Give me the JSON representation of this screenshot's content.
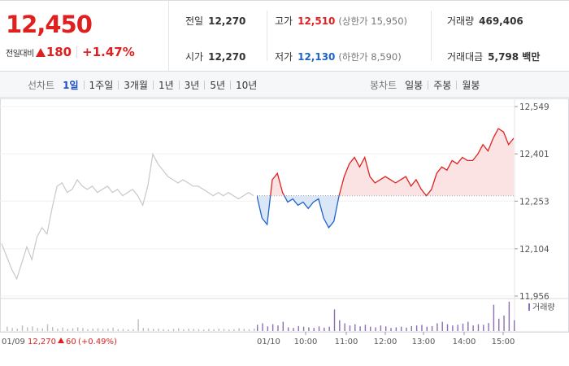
{
  "quote": {
    "price": "12,450",
    "change_label": "전일대비",
    "change_amount": "180",
    "change_pct": "+1.47%"
  },
  "stats": {
    "prev_close_label": "전일",
    "prev_close": "12,270",
    "open_label": "시가",
    "open": "12,270",
    "high_label": "고가",
    "high": "12,510",
    "upper_limit": "(상한가 15,950)",
    "low_label": "저가",
    "low": "12,130",
    "lower_limit": "(하한가 8,590)",
    "volume_label": "거래량",
    "volume": "469,406",
    "value_label": "거래대금",
    "value": "5,798 백만"
  },
  "tabs": {
    "line_label": "선차트",
    "line_periods": [
      "1일",
      "1주일",
      "3개월",
      "1년",
      "3년",
      "5년",
      "10년"
    ],
    "active_period": "1일",
    "candle_label": "봉차트",
    "candle_periods": [
      "일봉",
      "주봉",
      "월봉"
    ]
  },
  "colors": {
    "up": "#e01f1f",
    "down": "#1e64c8",
    "prev_day": "#c8c8c8",
    "volume": "#8a6fb5"
  },
  "chart_data": {
    "type": "line",
    "ylim": [
      11956,
      12549
    ],
    "y_ticks": [
      "12,549",
      "12,401",
      "12,253",
      "12,104",
      "11,956"
    ],
    "baseline": 12270,
    "volume_legend": "거래량",
    "prev_day_label": "01/09",
    "prev_day_close": "12,270",
    "prev_day_change": "60",
    "prev_day_change_pct": "(+0.49%)",
    "today_label": "01/10",
    "x_ticks": [
      "10:00",
      "11:00",
      "12:00",
      "13:00",
      "14:00",
      "15:00"
    ],
    "series": [
      {
        "x": [
          0,
          0.02,
          0.04,
          0.06,
          0.08,
          0.1,
          0.12,
          0.14,
          0.16,
          0.18,
          0.2,
          0.22,
          0.24,
          0.26,
          0.28,
          0.3,
          0.32,
          0.34,
          0.36,
          0.38,
          0.4,
          0.42,
          0.44,
          0.46,
          0.48,
          0.5,
          0.52,
          0.54,
          0.56,
          0.58,
          0.6,
          0.62,
          0.64,
          0.66,
          0.68,
          0.7,
          0.72,
          0.74,
          0.76,
          0.78,
          0.8,
          0.82,
          0.84,
          0.86,
          0.88,
          0.9,
          0.92,
          0.94,
          0.96,
          0.98,
          1.0
        ],
        "values": [
          12120,
          12080,
          12040,
          12010,
          12060,
          12110,
          12070,
          12140,
          12170,
          12150,
          12230,
          12300,
          12310,
          12280,
          12290,
          12320,
          12300,
          12290,
          12300,
          12280,
          12290,
          12300,
          12280,
          12290,
          12270,
          12280,
          12290,
          12270,
          12240,
          12300,
          12400,
          12370,
          12350,
          12330,
          12320,
          12310,
          12320,
          12310,
          12300,
          12300,
          12290,
          12280,
          12270,
          12280,
          12270,
          12280,
          12270,
          12260,
          12270,
          12280,
          12270
        ]
      },
      {
        "x": [
          0,
          0.02,
          0.04,
          0.06,
          0.08,
          0.1,
          0.12,
          0.14,
          0.16,
          0.18,
          0.2,
          0.22,
          0.24,
          0.26,
          0.28,
          0.3,
          0.32,
          0.34,
          0.36,
          0.38,
          0.4,
          0.42,
          0.44,
          0.46,
          0.48,
          0.5,
          0.52,
          0.54,
          0.56,
          0.58,
          0.6,
          0.62,
          0.64,
          0.66,
          0.68,
          0.7,
          0.72,
          0.74,
          0.76,
          0.78,
          0.8,
          0.82,
          0.84,
          0.86,
          0.88,
          0.9,
          0.92,
          0.94,
          0.96,
          0.98,
          1.0
        ],
        "values": [
          12270,
          12200,
          12180,
          12320,
          12340,
          12280,
          12250,
          12260,
          12240,
          12250,
          12230,
          12250,
          12260,
          12200,
          12170,
          12190,
          12270,
          12330,
          12370,
          12390,
          12360,
          12390,
          12330,
          12310,
          12320,
          12330,
          12320,
          12310,
          12320,
          12330,
          12300,
          12320,
          12290,
          12270,
          12290,
          12340,
          12360,
          12350,
          12380,
          12370,
          12390,
          12380,
          12380,
          12400,
          12430,
          12410,
          12450,
          12480,
          12470,
          12430,
          12450
        ]
      }
    ],
    "volume": [
      [
        0,
        0.14,
        0.1,
        0.08,
        0.18,
        0.12,
        0.15,
        0.1,
        0.09,
        0.22,
        0.13,
        0.08,
        0.11,
        0.07,
        0.09,
        0.12,
        0.1,
        0.06,
        0.08,
        0.09,
        0.07,
        0.08,
        0.11,
        0.06,
        0.07,
        0.05,
        0.06,
        0.38,
        0.1,
        0.09,
        0.07,
        0.08,
        0.06,
        0.05,
        0.07,
        0.09,
        0.06,
        0.08,
        0.07,
        0.06,
        0.05,
        0.07,
        0.06,
        0.08,
        0.07,
        0.05,
        0.06,
        0.09,
        0.07,
        0.06,
        0.08
      ],
      [
        0.2,
        0.25,
        0.15,
        0.22,
        0.18,
        0.3,
        0.12,
        0.1,
        0.16,
        0.14,
        0.12,
        0.1,
        0.15,
        0.11,
        0.14,
        0.7,
        0.35,
        0.25,
        0.18,
        0.22,
        0.15,
        0.2,
        0.14,
        0.12,
        0.18,
        0.15,
        0.1,
        0.12,
        0.14,
        0.11,
        0.16,
        0.18,
        0.2,
        0.14,
        0.16,
        0.25,
        0.3,
        0.22,
        0.18,
        0.2,
        0.24,
        0.3,
        0.18,
        0.22,
        0.2,
        0.26,
        0.85,
        0.4,
        0.5,
        0.95,
        0.35
      ]
    ]
  }
}
